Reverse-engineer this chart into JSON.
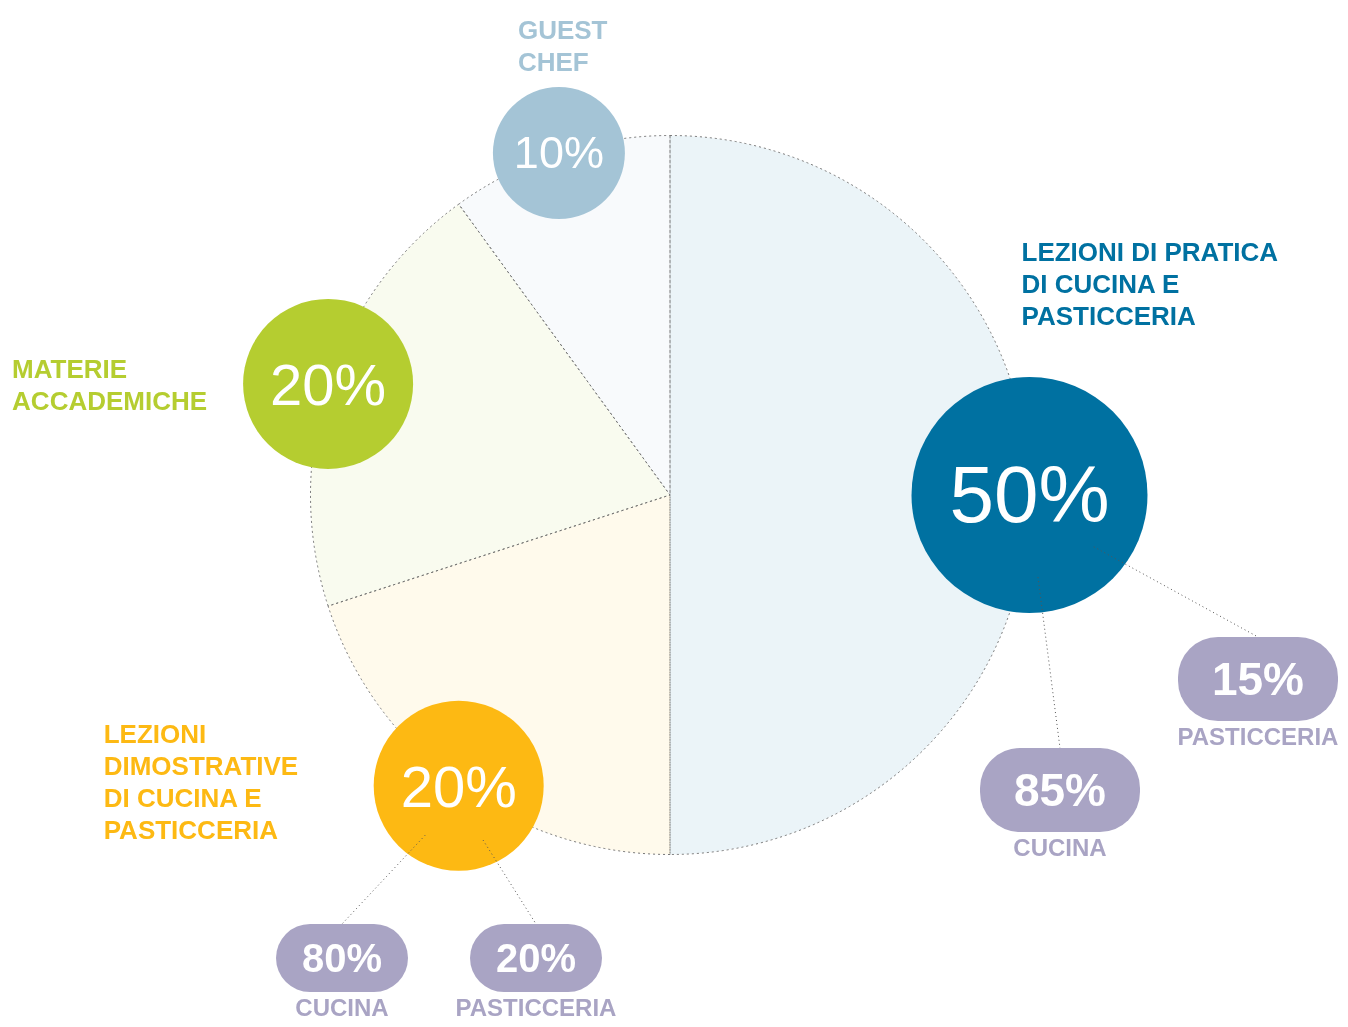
{
  "chart_data": [
    {
      "type": "pie",
      "categories": [
        "LEZIONI DI PRATICA DI CUCINA E PASTICCERIA",
        "LEZIONI DIMOSTRATIVE DI CUCINA E PASTICCERIA",
        "MATERIE ACCADEMICHE",
        "GUEST CHEF"
      ],
      "values": [
        50,
        20,
        20,
        10
      ],
      "value_labels": [
        "50%",
        "20%",
        "20%",
        "10%"
      ],
      "colors": [
        "#0071a1",
        "#fdb913",
        "#b5cd30",
        "#a4c4d6"
      ],
      "data_labels": true
    },
    {
      "type": "other",
      "categories": [
        "CUCINA",
        "PASTICCERIA"
      ],
      "values": [
        85,
        15
      ],
      "value_labels": [
        "85%",
        "15%"
      ],
      "color": "#a9a4c4",
      "data_labels": true
    },
    {
      "type": "other",
      "categories": [
        "CUCINA",
        "PASTICCERIA"
      ],
      "values": [
        80,
        20
      ],
      "value_labels": [
        "80%",
        "20%"
      ],
      "color": "#a9a4c4",
      "data_labels": true
    }
  ]
}
